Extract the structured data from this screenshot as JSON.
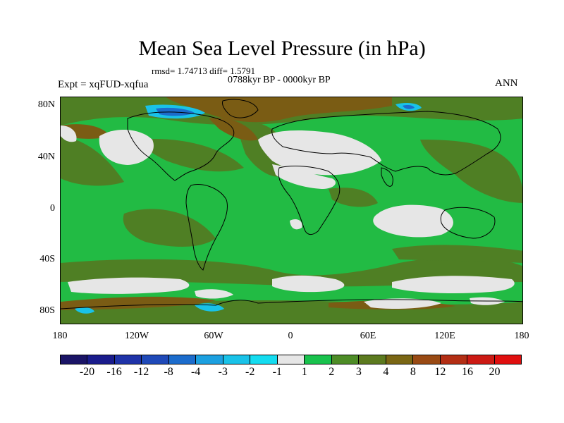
{
  "title": "Mean Sea Level Pressure (in hPa)",
  "stats": "rmsd= 1.74713 diff= 1.5791",
  "period": "0788kyr BP - 0000kyr BP",
  "experiment": "Expt = xqFUD-xqfua",
  "season": "ANN",
  "lat_labels": [
    "80N",
    "40N",
    "0",
    "40S",
    "80S"
  ],
  "lon_labels": [
    "180",
    "120W",
    "60W",
    "0",
    "60E",
    "120E",
    "180"
  ],
  "colorbar": {
    "labels": [
      "-20",
      "-16",
      "-12",
      "-8",
      "-4",
      "-3",
      "-2",
      "-1",
      "1",
      "2",
      "3",
      "4",
      "8",
      "12",
      "16",
      "20"
    ],
    "colors": [
      "#1a1466",
      "#1a1c8c",
      "#1f33a8",
      "#1f49b8",
      "#1c6ccc",
      "#1ca0e0",
      "#19c2e8",
      "#14dcf0",
      "#e6e6e6",
      "#19c24d",
      "#4d8c26",
      "#5c7a1f",
      "#7a6614",
      "#994a14",
      "#b32e14",
      "#cc1a14",
      "#e00f0f"
    ]
  },
  "palette": {
    "ocean_green": "#22bb44",
    "olive": "#4f7f24",
    "brown": "#7a5c14",
    "light": "#e6e6e6",
    "cyan": "#19c2e8",
    "blue": "#1c6ccc"
  }
}
